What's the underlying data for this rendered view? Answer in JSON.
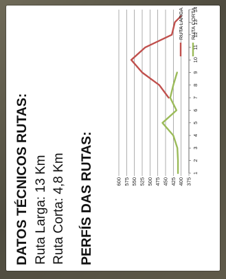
{
  "texts": {
    "title1": "DATOS TÉCNICOS RUTAS:",
    "line1": "Ruta Larga: 13 Km",
    "line2": "Ruta Corta: 4,8 Km",
    "title2": "PERFÍS DAS RUTAS:"
  },
  "chart_data": {
    "type": "line",
    "x": [
      1,
      2,
      3,
      4,
      5,
      6,
      7,
      8,
      9,
      10,
      11,
      12,
      13,
      14
    ],
    "ylim": [
      375,
      600
    ],
    "yticks": [
      375,
      400,
      425,
      450,
      475,
      500,
      525,
      550,
      575,
      600
    ],
    "grid": true,
    "legend_position": "top-right",
    "series": [
      {
        "name": "RUTA LARGA",
        "color": "#c0504d",
        "points": [
          [
            7,
            440
          ],
          [
            8,
            470
          ],
          [
            9,
            525
          ],
          [
            10,
            560
          ],
          [
            11,
            515
          ],
          [
            12,
            430
          ],
          [
            13,
            420
          ],
          [
            13.5,
            400
          ]
        ]
      },
      {
        "name": "RUTA CORTA",
        "color": "#9bbb59",
        "points": [
          [
            1,
            410
          ],
          [
            2,
            410
          ],
          [
            3,
            412
          ],
          [
            4,
            425
          ],
          [
            5,
            460
          ],
          [
            6,
            415
          ],
          [
            7,
            435
          ],
          [
            8,
            425
          ],
          [
            9,
            413
          ]
        ]
      }
    ]
  }
}
